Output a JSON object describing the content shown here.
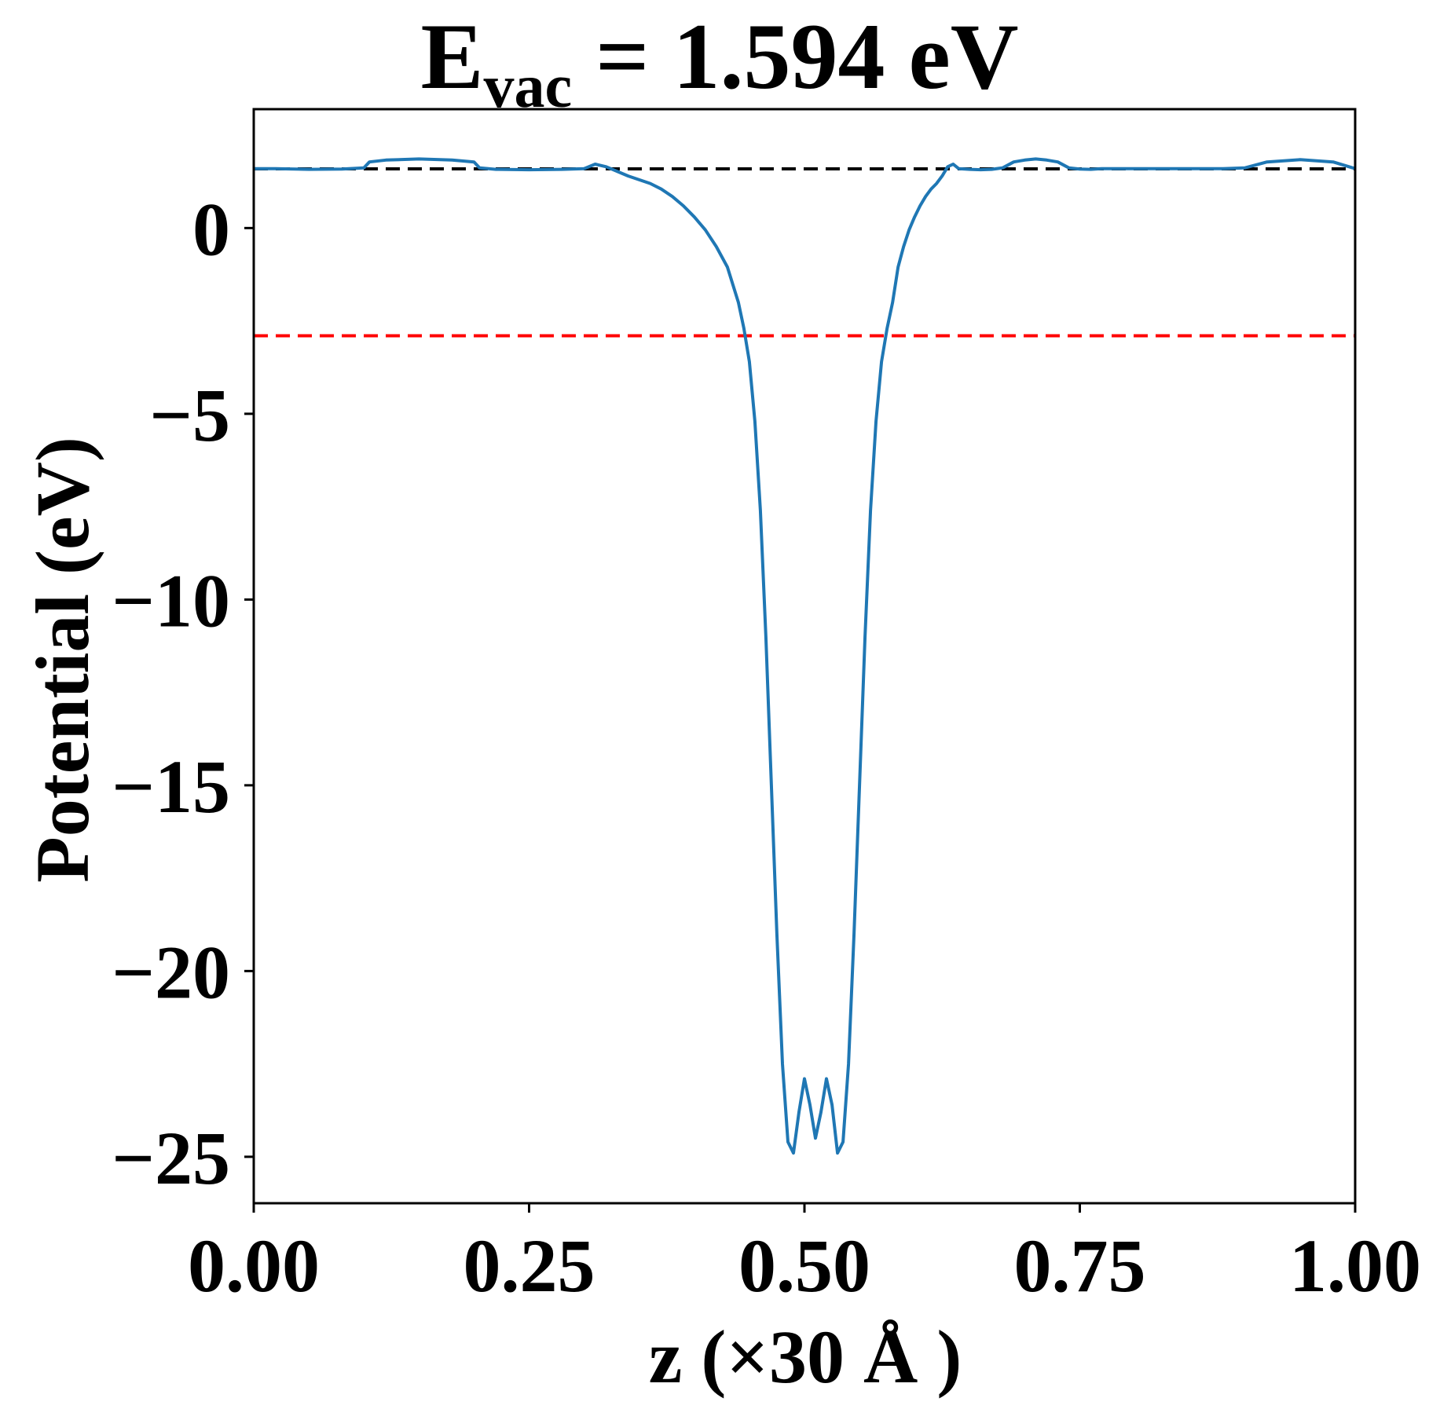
{
  "chart_data": {
    "type": "line",
    "title_main": "E",
    "title_sub": "vac",
    "title_rest": " = 1.594 eV",
    "xlabel": "z (×30 Å )",
    "ylabel": "Potential (eV)",
    "xlim": [
      0.0,
      1.0
    ],
    "ylim": [
      -26.25,
      3.2
    ],
    "xticks": [
      0.0,
      0.25,
      0.5,
      0.75,
      1.0
    ],
    "xtick_labels": [
      "0.00",
      "0.25",
      "0.50",
      "0.75",
      "1.00"
    ],
    "yticks": [
      0,
      -5,
      -10,
      -15,
      -20,
      -25
    ],
    "ytick_labels": [
      "0",
      "−5",
      "−10",
      "−15",
      "−20",
      "−25"
    ],
    "grid": false,
    "colors": {
      "series": "#1f77b4",
      "vacuum_line": "#000000",
      "fermi_line": "#ff0000"
    },
    "reference_lines": [
      {
        "y": 1.594,
        "color": "#000000",
        "style": "dashed"
      },
      {
        "y": -2.9,
        "color": "#ff0000",
        "style": "dashed"
      }
    ],
    "series": [
      {
        "x": [
          0.0,
          0.02,
          0.05,
          0.08,
          0.1,
          0.105,
          0.12,
          0.15,
          0.18,
          0.2,
          0.205,
          0.22,
          0.25,
          0.28,
          0.3,
          0.31,
          0.32,
          0.34,
          0.36,
          0.37,
          0.38,
          0.39,
          0.4,
          0.41,
          0.42,
          0.43,
          0.44,
          0.445,
          0.45,
          0.455,
          0.46,
          0.465,
          0.47,
          0.475,
          0.48,
          0.485,
          0.49,
          0.495,
          0.5,
          0.505,
          0.51,
          0.515,
          0.52,
          0.525,
          0.53,
          0.535,
          0.54,
          0.545,
          0.55,
          0.555,
          0.56,
          0.565,
          0.57,
          0.575,
          0.58,
          0.585,
          0.59,
          0.595,
          0.6,
          0.605,
          0.61,
          0.615,
          0.62,
          0.625,
          0.63,
          0.635,
          0.64,
          0.65,
          0.66,
          0.67,
          0.68,
          0.69,
          0.7,
          0.71,
          0.72,
          0.73,
          0.74,
          0.75,
          0.76,
          0.77,
          0.78,
          0.79,
          0.8,
          0.82,
          0.85,
          0.88,
          0.9,
          0.92,
          0.95,
          0.98,
          1.0
        ],
        "y": [
          1.6,
          1.6,
          1.58,
          1.59,
          1.62,
          1.78,
          1.83,
          1.86,
          1.83,
          1.78,
          1.62,
          1.58,
          1.57,
          1.58,
          1.6,
          1.72,
          1.65,
          1.4,
          1.2,
          1.05,
          0.85,
          0.6,
          0.3,
          -0.05,
          -0.5,
          -1.05,
          -2.0,
          -2.7,
          -3.6,
          -5.2,
          -7.6,
          -11.0,
          -15.0,
          -19.0,
          -22.5,
          -24.6,
          -24.9,
          -23.8,
          -22.9,
          -23.6,
          -24.5,
          -23.8,
          -22.9,
          -23.6,
          -24.9,
          -24.6,
          -22.5,
          -19.0,
          -15.0,
          -11.0,
          -7.6,
          -5.2,
          -3.6,
          -2.7,
          -2.0,
          -1.05,
          -0.5,
          -0.05,
          0.3,
          0.6,
          0.85,
          1.05,
          1.2,
          1.4,
          1.65,
          1.72,
          1.6,
          1.58,
          1.57,
          1.58,
          1.62,
          1.78,
          1.83,
          1.86,
          1.83,
          1.78,
          1.62,
          1.59,
          1.58,
          1.6,
          1.6,
          1.6,
          1.6,
          1.6,
          1.6,
          1.6,
          1.62,
          1.78,
          1.84,
          1.78,
          1.6
        ]
      }
    ]
  }
}
